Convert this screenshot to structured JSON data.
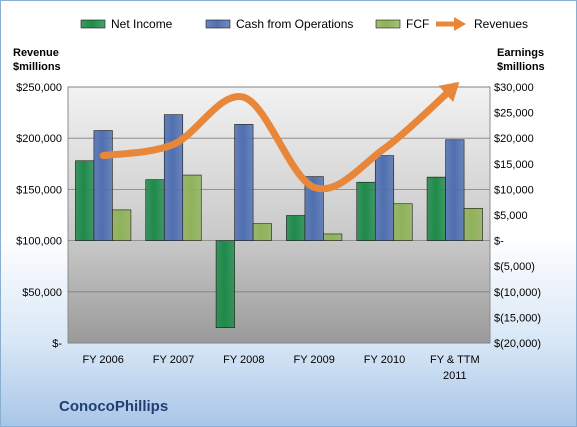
{
  "company": "ConocoPhillips",
  "left_axis_title": [
    "Revenue",
    "$millions"
  ],
  "right_axis_title": [
    "Earnings",
    "$millions"
  ],
  "colors": {
    "net_income": "#1e8a4a",
    "cash_from_operations": "#4f6fb0",
    "fcf": "#8fb25a",
    "revenues": "#e8873a"
  },
  "chart_data": {
    "type": "bar",
    "categories": [
      "FY 2006",
      "FY 2007",
      "FY 2008",
      "FY 2009",
      "FY 2010",
      "FY & TTM 2011"
    ],
    "legend": [
      "Net Income",
      "Cash from Operations",
      "FCF",
      "Revenues"
    ],
    "legend_position": "top",
    "bar_series": [
      {
        "name": "Net Income",
        "axis": "right",
        "values": [
          15600,
          11900,
          -17000,
          4900,
          11400,
          12400
        ]
      },
      {
        "name": "Cash from Operations",
        "axis": "right",
        "values": [
          21500,
          24600,
          22700,
          12500,
          16600,
          19700
        ]
      },
      {
        "name": "FCF",
        "axis": "right",
        "values": [
          6000,
          12800,
          3300,
          1300,
          7200,
          6300
        ]
      }
    ],
    "line_series": {
      "name": "Revenues",
      "axis": "left",
      "type": "smoothed line with arrowhead",
      "values": [
        183000,
        194000,
        240000,
        152000,
        190000,
        251000
      ]
    },
    "left_axis": {
      "label": "Revenue $millions",
      "min": 0,
      "max": 250000,
      "ticks": [
        "$-",
        "$50,000",
        "$100,000",
        "$150,000",
        "$200,000",
        "$250,000"
      ]
    },
    "right_axis": {
      "label": "Earnings $millions",
      "min": -20000,
      "max": 30000,
      "ticks": [
        "$(20,000)",
        "$(15,000)",
        "$(10,000)",
        "$(5,000)",
        "$-",
        "$5,000",
        "$10,000",
        "$15,000",
        "$20,000",
        "$25,000",
        "$30,000"
      ]
    },
    "grid": true
  }
}
